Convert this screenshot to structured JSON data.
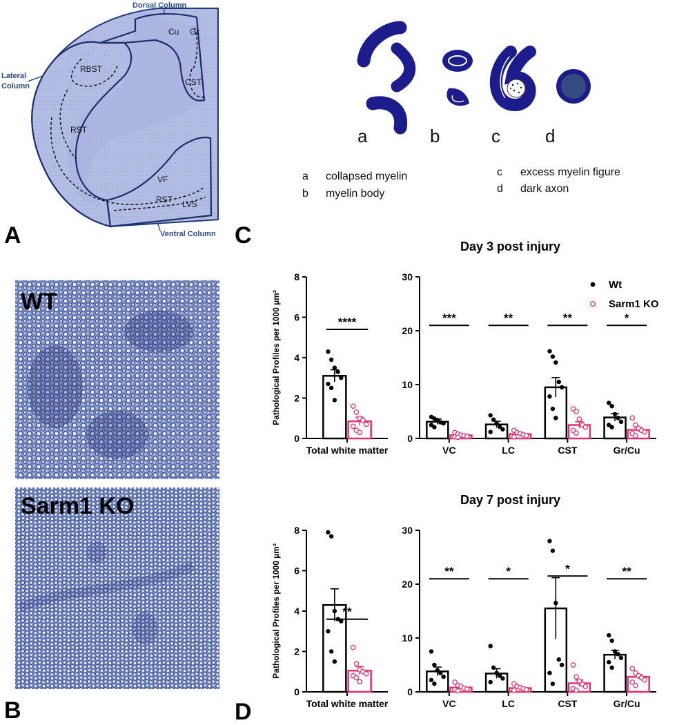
{
  "panels": {
    "A": {
      "letter": "A",
      "column_labels": {
        "dorsal": "Dorsal Column",
        "lateral_1": "Lateral",
        "lateral_2": "Column",
        "ventral": "Ventral Column"
      },
      "tract_labels": [
        "Cu",
        "Gr",
        "RBST",
        "CST",
        "RST",
        "VF",
        "RST",
        "LVS"
      ]
    },
    "B": {
      "letter": "B",
      "wt_label": "WT",
      "ko_label": "Sarm1 KO"
    },
    "C": {
      "letter": "C",
      "schematic_letters": [
        "a",
        "b",
        "c",
        "d"
      ],
      "legend": [
        {
          "key": "a",
          "text": "collapsed myelin"
        },
        {
          "key": "b",
          "text": "myelin body"
        },
        {
          "key": "c",
          "text": "excess myelin figure"
        },
        {
          "key": "d",
          "text": "dark axon"
        }
      ]
    },
    "D": {
      "letter": "D"
    }
  },
  "colors": {
    "wt": "#000000",
    "ko": "#e8306e",
    "myelin": "#1c1c8c",
    "stain_bg": "#8f9fcf"
  },
  "legend": {
    "wt": "Wt",
    "ko": "Sarm1 KO"
  },
  "chart_data": [
    {
      "type": "bar",
      "title": "",
      "ylabel": "Pathological Profiles per 1000 µm²",
      "categories": [
        "Total white matter"
      ],
      "ylim": [
        0,
        8
      ],
      "yticks": [
        0,
        2,
        4,
        6,
        8
      ],
      "series": [
        {
          "name": "Wt",
          "values": [
            3.1
          ],
          "sem": [
            0.3
          ],
          "points": [
            [
              4.3,
              3.9,
              3.5,
              3.3,
              3.0,
              2.7,
              2.5,
              1.9
            ]
          ]
        },
        {
          "name": "Sarm1 KO",
          "values": [
            0.85
          ],
          "sem": [
            0.2
          ],
          "points": [
            [
              1.6,
              1.3,
              1.0,
              0.9,
              0.7,
              0.6,
              0.4,
              0.3
            ]
          ]
        }
      ],
      "significance": [
        "****"
      ]
    },
    {
      "type": "bar",
      "title": "Day 3 post injury",
      "ylabel": "",
      "categories": [
        "VC",
        "LC",
        "CST",
        "Gr/Cu"
      ],
      "ylim": [
        0,
        30
      ],
      "yticks": [
        0,
        10,
        20,
        30
      ],
      "legend_position": "top-right",
      "series": [
        {
          "name": "Wt",
          "values": [
            3.1,
            2.6,
            9.5,
            3.9
          ],
          "sem": [
            0.5,
            0.6,
            1.8,
            0.7
          ],
          "points": [
            [
              4.0,
              3.7,
              3.4,
              3.0,
              2.8,
              2.5,
              2.1
            ],
            [
              4.3,
              3.5,
              2.8,
              2.2,
              1.7,
              1.2
            ],
            [
              16.2,
              15.2,
              14.1,
              10.5,
              9.5,
              7.8,
              5.5,
              3.8
            ],
            [
              6.6,
              6.0,
              4.5,
              3.8,
              3.1,
              2.5,
              2.1
            ]
          ]
        },
        {
          "name": "Sarm1 KO",
          "values": [
            0.6,
            0.8,
            2.5,
            1.6
          ],
          "sem": [
            0.15,
            0.2,
            0.6,
            0.4
          ],
          "points": [
            [
              1.1,
              0.8,
              0.6,
              0.5,
              0.4,
              0.3,
              0.2
            ],
            [
              1.5,
              1.1,
              0.9,
              0.7,
              0.5,
              0.3
            ],
            [
              5.5,
              5.0,
              3.6,
              2.5,
              2.1,
              1.5,
              1.0
            ],
            [
              3.8,
              2.5,
              1.9,
              1.5,
              1.2,
              0.9,
              0.5
            ]
          ]
        }
      ],
      "significance": [
        "***",
        "**",
        "**",
        "*"
      ]
    },
    {
      "type": "bar",
      "title": "",
      "ylabel": "Pathological Profiles per 1000 µm²",
      "categories": [
        "Total white matter"
      ],
      "ylim": [
        0,
        8
      ],
      "yticks": [
        0,
        2,
        4,
        6,
        8
      ],
      "series": [
        {
          "name": "Wt",
          "values": [
            4.3
          ],
          "sem": [
            0.8
          ],
          "points": [
            [
              7.9,
              7.7,
              4.0,
              3.6,
              3.5,
              3.0,
              2.0,
              1.5
            ]
          ]
        },
        {
          "name": "Sarm1 KO",
          "values": [
            1.05
          ],
          "sem": [
            0.2
          ],
          "points": [
            [
              2.2,
              1.4,
              1.1,
              1.0,
              0.9,
              0.8,
              0.7,
              0.5
            ]
          ]
        }
      ],
      "significance": [
        "**"
      ]
    },
    {
      "type": "bar",
      "title": "Day 7 post injury",
      "ylabel": "",
      "categories": [
        "VC",
        "LC",
        "CST",
        "Gr/Cu"
      ],
      "ylim": [
        0,
        30
      ],
      "yticks": [
        0,
        10,
        20,
        30
      ],
      "series": [
        {
          "name": "Wt",
          "values": [
            3.8,
            3.4,
            15.5,
            6.9
          ],
          "sem": [
            0.8,
            0.9,
            5.7,
            0.8
          ],
          "points": [
            [
              7.5,
              5.0,
              4.0,
              3.5,
              2.8,
              2.2,
              1.5
            ],
            [
              8.5,
              4.5,
              3.5,
              3.0,
              2.5,
              1.8
            ],
            [
              28.0,
              26.2,
              16.5,
              6.0,
              5.0,
              3.5,
              1.5
            ],
            [
              10.5,
              9.5,
              7.5,
              7.0,
              6.3,
              5.5,
              4.5
            ]
          ]
        },
        {
          "name": "Sarm1 KO",
          "values": [
            0.8,
            0.7,
            1.6,
            2.8
          ],
          "sem": [
            0.2,
            0.2,
            0.6,
            0.4
          ],
          "points": [
            [
              1.8,
              1.2,
              1.0,
              0.7,
              0.5,
              0.4,
              0.2
            ],
            [
              1.5,
              1.0,
              0.8,
              0.6,
              0.4,
              0.3
            ],
            [
              5.0,
              2.8,
              2.0,
              1.4,
              1.0,
              0.6,
              0.3
            ],
            [
              4.3,
              3.5,
              3.0,
              2.6,
              2.2,
              1.8,
              1.2
            ]
          ]
        }
      ],
      "significance": [
        "**",
        "*",
        "*",
        "**"
      ]
    }
  ]
}
